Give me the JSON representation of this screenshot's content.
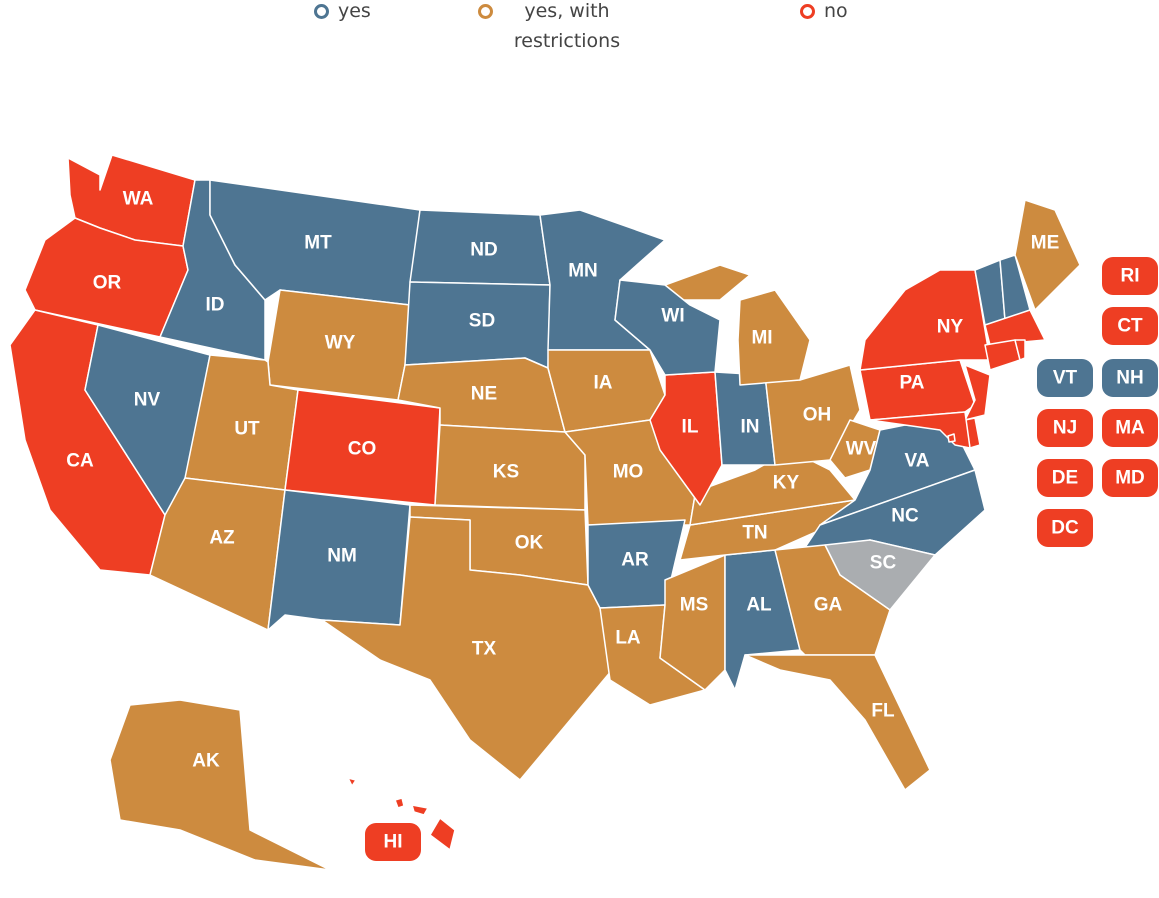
{
  "legend": [
    {
      "label": "yes",
      "color": "#4e7592"
    },
    {
      "label": "yes, with restrictions",
      "color": "#cd8b3f"
    },
    {
      "label": "no",
      "color": "#ee3e23"
    }
  ],
  "unknown_color": "#aaadb0",
  "states": [
    {
      "abbr": "WA",
      "status": "no"
    },
    {
      "abbr": "OR",
      "status": "no"
    },
    {
      "abbr": "CA",
      "status": "no"
    },
    {
      "abbr": "ID",
      "status": "yes"
    },
    {
      "abbr": "NV",
      "status": "yes"
    },
    {
      "abbr": "MT",
      "status": "yes"
    },
    {
      "abbr": "WY",
      "status": "yes, with restrictions"
    },
    {
      "abbr": "UT",
      "status": "yes, with restrictions"
    },
    {
      "abbr": "AZ",
      "status": "yes, with restrictions"
    },
    {
      "abbr": "CO",
      "status": "no"
    },
    {
      "abbr": "NM",
      "status": "yes"
    },
    {
      "abbr": "ND",
      "status": "yes"
    },
    {
      "abbr": "SD",
      "status": "yes"
    },
    {
      "abbr": "NE",
      "status": "yes, with restrictions"
    },
    {
      "abbr": "KS",
      "status": "yes, with restrictions"
    },
    {
      "abbr": "OK",
      "status": "yes, with restrictions"
    },
    {
      "abbr": "TX",
      "status": "yes, with restrictions"
    },
    {
      "abbr": "MN",
      "status": "yes"
    },
    {
      "abbr": "IA",
      "status": "yes, with restrictions"
    },
    {
      "abbr": "MO",
      "status": "yes, with restrictions"
    },
    {
      "abbr": "AR",
      "status": "yes"
    },
    {
      "abbr": "LA",
      "status": "yes, with restrictions"
    },
    {
      "abbr": "MS",
      "status": "yes, with restrictions"
    },
    {
      "abbr": "AL",
      "status": "yes"
    },
    {
      "abbr": "TN",
      "status": "yes, with restrictions"
    },
    {
      "abbr": "KY",
      "status": "yes, with restrictions"
    },
    {
      "abbr": "IL",
      "status": "no"
    },
    {
      "abbr": "IN",
      "status": "yes"
    },
    {
      "abbr": "OH",
      "status": "yes, with restrictions"
    },
    {
      "abbr": "MI",
      "status": "yes, with restrictions"
    },
    {
      "abbr": "WI",
      "status": "yes"
    },
    {
      "abbr": "WV",
      "status": "yes, with restrictions"
    },
    {
      "abbr": "VA",
      "status": "yes"
    },
    {
      "abbr": "NC",
      "status": "yes"
    },
    {
      "abbr": "SC",
      "status": null
    },
    {
      "abbr": "GA",
      "status": "yes, with restrictions"
    },
    {
      "abbr": "FL",
      "status": "yes, with restrictions"
    },
    {
      "abbr": "PA",
      "status": "no"
    },
    {
      "abbr": "NY",
      "status": "no"
    },
    {
      "abbr": "VT",
      "status": "yes"
    },
    {
      "abbr": "NH",
      "status": "yes"
    },
    {
      "abbr": "ME",
      "status": "yes, with restrictions"
    },
    {
      "abbr": "MA",
      "status": "no"
    },
    {
      "abbr": "CT",
      "status": "no"
    },
    {
      "abbr": "RI",
      "status": "no"
    },
    {
      "abbr": "NJ",
      "status": "no"
    },
    {
      "abbr": "DE",
      "status": "no"
    },
    {
      "abbr": "MD",
      "status": "no"
    },
    {
      "abbr": "DC",
      "status": "no"
    },
    {
      "abbr": "AK",
      "status": "yes, with restrictions"
    },
    {
      "abbr": "HI",
      "status": "no"
    }
  ]
}
